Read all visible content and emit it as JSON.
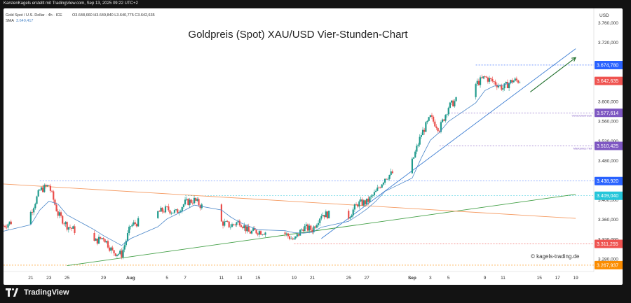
{
  "header": {
    "attribution": "KarstenKagels erstellt mit TradingView.com, Sep 13, 2025 09:22 UTC+2",
    "symbol": "Gold Spot / U.S. Dollar · 4h · ICE",
    "ohlc": "O3.648,660  H3.649,840  L3.640,775  C3.642,635",
    "sma_label": "SMA",
    "sma_value": "3.640,417"
  },
  "footer": {
    "brand": "TradingView",
    "watermark": "© kagels-trading.de"
  },
  "colors": {
    "up": "#1f9a8c",
    "down": "#ea4d4a",
    "sma": "#4a86c8",
    "trend_blue": "#3f7fd3",
    "trend_green": "#43a047",
    "trend_orange": "#f59b62",
    "arrow": "#1e6e2a",
    "level_purple": "#7e57c2",
    "level_red": "#ef5350",
    "level_orange": "#fb8c00",
    "level_cyan": "#26c6da",
    "level_blue": "#2962ff",
    "last_price": "#ef5350"
  },
  "chart_data": {
    "type": "candlestick",
    "title": "Goldpreis (Spot) XAU/USD Vier-Stunden-Chart",
    "currency": "USD",
    "timeframe": "4h",
    "ylim": [
      3255,
      3790
    ],
    "y_ticks": [
      "3.280,000",
      "3.320,000",
      "3.360,000",
      "3.400,000",
      "3.440,000",
      "3.480,000",
      "3.520,000",
      "3.560,000",
      "3.600,000",
      "3.640,000",
      "3.680,000",
      "3.720,000",
      "3.760,000"
    ],
    "y_tick_values": [
      3280,
      3320,
      3360,
      3400,
      3440,
      3480,
      3520,
      3560,
      3600,
      3640,
      3680,
      3720,
      3760
    ],
    "x_ticks": [
      "21",
      "23",
      "25",
      "29",
      "Aug",
      "5",
      "7",
      "11",
      "13",
      "15",
      "19",
      "21",
      "25",
      "27",
      "Sep",
      "3",
      "5",
      "9",
      "11",
      "15",
      "17",
      "19"
    ],
    "x_tick_dates": [
      "2025-07-21",
      "2025-07-23",
      "2025-07-25",
      "2025-07-29",
      "2025-08-01",
      "2025-08-05",
      "2025-08-07",
      "2025-08-11",
      "2025-08-13",
      "2025-08-15",
      "2025-08-19",
      "2025-08-21",
      "2025-08-25",
      "2025-08-27",
      "2025-09-01",
      "2025-09-03",
      "2025-09-05",
      "2025-09-09",
      "2025-09-11",
      "2025-09-15",
      "2025-09-17",
      "2025-09-19"
    ],
    "close_path": [
      [
        "2025-07-18",
        3348
      ],
      [
        "2025-07-21",
        3375
      ],
      [
        "2025-07-22",
        3420
      ],
      [
        "2025-07-23",
        3430
      ],
      [
        "2025-07-24",
        3372
      ],
      [
        "2025-07-25",
        3348
      ],
      [
        "2025-07-28",
        3315
      ],
      [
        "2025-07-29",
        3325
      ],
      [
        "2025-07-30",
        3295
      ],
      [
        "2025-07-31",
        3290
      ],
      [
        "2025-08-01",
        3348
      ],
      [
        "2025-08-04",
        3375
      ],
      [
        "2025-08-05",
        3382
      ],
      [
        "2025-08-06",
        3375
      ],
      [
        "2025-08-07",
        3395
      ],
      [
        "2025-08-08",
        3400
      ],
      [
        "2025-08-11",
        3355
      ],
      [
        "2025-08-12",
        3348
      ],
      [
        "2025-08-13",
        3357
      ],
      [
        "2025-08-14",
        3335
      ],
      [
        "2025-08-15",
        3337
      ],
      [
        "2025-08-18",
        3332
      ],
      [
        "2025-08-19",
        3318
      ],
      [
        "2025-08-20",
        3345
      ],
      [
        "2025-08-21",
        3340
      ],
      [
        "2025-08-22",
        3372
      ],
      [
        "2025-08-25",
        3367
      ],
      [
        "2025-08-26",
        3393
      ],
      [
        "2025-08-27",
        3396
      ],
      [
        "2025-08-28",
        3416
      ],
      [
        "2025-08-29",
        3446
      ],
      [
        "2025-09-01",
        3478
      ],
      [
        "2025-09-02",
        3534
      ],
      [
        "2025-09-03",
        3568
      ],
      [
        "2025-09-04",
        3545
      ],
      [
        "2025-09-05",
        3590
      ],
      [
        "2025-09-08",
        3636
      ],
      [
        "2025-09-09",
        3650
      ],
      [
        "2025-09-10",
        3640
      ],
      [
        "2025-09-11",
        3628
      ],
      [
        "2025-09-12",
        3643
      ]
    ],
    "sma_path": [
      [
        "2025-07-18",
        3337
      ],
      [
        "2025-07-21",
        3350
      ],
      [
        "2025-07-22",
        3380
      ],
      [
        "2025-07-23",
        3398
      ],
      [
        "2025-07-24",
        3392
      ],
      [
        "2025-07-25",
        3370
      ],
      [
        "2025-07-28",
        3340
      ],
      [
        "2025-07-29",
        3328
      ],
      [
        "2025-07-30",
        3318
      ],
      [
        "2025-07-31",
        3308
      ],
      [
        "2025-08-01",
        3322
      ],
      [
        "2025-08-04",
        3346
      ],
      [
        "2025-08-05",
        3362
      ],
      [
        "2025-08-06",
        3371
      ],
      [
        "2025-08-07",
        3380
      ],
      [
        "2025-08-08",
        3390
      ],
      [
        "2025-08-11",
        3380
      ],
      [
        "2025-08-12",
        3366
      ],
      [
        "2025-08-13",
        3355
      ],
      [
        "2025-08-14",
        3347
      ],
      [
        "2025-08-15",
        3340
      ],
      [
        "2025-08-18",
        3338
      ],
      [
        "2025-08-19",
        3334
      ],
      [
        "2025-08-20",
        3333
      ],
      [
        "2025-08-21",
        3335
      ],
      [
        "2025-08-22",
        3345
      ],
      [
        "2025-08-25",
        3357
      ],
      [
        "2025-08-26",
        3369
      ],
      [
        "2025-08-27",
        3382
      ],
      [
        "2025-08-28",
        3398
      ],
      [
        "2025-08-29",
        3418
      ],
      [
        "2025-09-01",
        3445
      ],
      [
        "2025-09-02",
        3486
      ],
      [
        "2025-09-03",
        3522
      ],
      [
        "2025-09-04",
        3538
      ],
      [
        "2025-09-05",
        3560
      ],
      [
        "2025-09-08",
        3598
      ],
      [
        "2025-09-09",
        3623
      ],
      [
        "2025-09-10",
        3632
      ],
      [
        "2025-09-11",
        3634
      ],
      [
        "2025-09-12",
        3640
      ]
    ],
    "price_labels": [
      {
        "value": 3674.78,
        "text": "3.674,780",
        "kind": "level_blue",
        "note": ""
      },
      {
        "value": 3642.635,
        "text": "3.642,635",
        "kind": "last_price",
        "note": ""
      },
      {
        "value": 3577.614,
        "text": "3.577,614",
        "kind": "level_purple",
        "note": "Vorwochenhoch"
      },
      {
        "value": 3510.425,
        "text": "3.510,425",
        "kind": "level_purple",
        "note": "Markantes Tief"
      },
      {
        "value": 3438.92,
        "text": "3.438,920",
        "kind": "level_blue",
        "note": ""
      },
      {
        "value": 3409.04,
        "text": "3.409,040",
        "kind": "level_cyan",
        "note": ""
      },
      {
        "value": 3311.255,
        "text": "3.311,255",
        "kind": "level_red",
        "note": ""
      },
      {
        "value": 3267.937,
        "text": "3.267,937",
        "kind": "level_orange",
        "note": ""
      }
    ],
    "trendlines": [
      {
        "name": "blue",
        "points": [
          [
            "2025-08-22",
            3322
          ],
          [
            "2025-09-19",
            3708
          ]
        ]
      },
      {
        "name": "green",
        "points": [
          [
            "2025-07-25",
            3267
          ],
          [
            "2025-09-19",
            3412
          ]
        ]
      },
      {
        "name": "orange",
        "points": [
          [
            "2025-07-18",
            3433
          ],
          [
            "2025-09-19",
            3363
          ]
        ]
      }
    ],
    "projection_arrow": {
      "from": [
        "2025-09-14",
        3620
      ],
      "to": [
        "2025-09-19",
        3690
      ]
    }
  }
}
